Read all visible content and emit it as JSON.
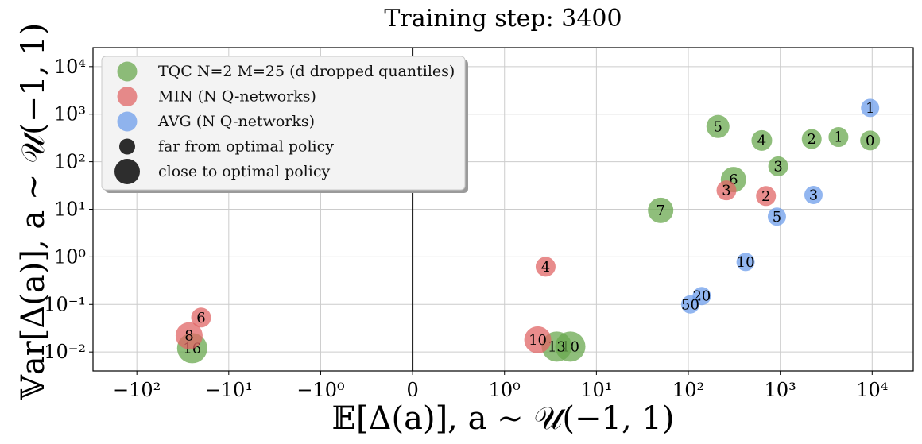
{
  "chart_data": {
    "type": "scatter",
    "title": "Training step: 3400",
    "xlabel": "𝔼[Δ(a)],    a ∼ 𝒰(−1, 1)",
    "ylabel": "𝕍ar[Δ(a)],    a ∼ 𝒰(−1, 1)",
    "x_scale": "symlog",
    "y_scale": "log",
    "x_ticks": [
      {
        "value": -100,
        "label": "−10²"
      },
      {
        "value": -10,
        "label": "−10¹"
      },
      {
        "value": -1,
        "label": "−10⁰"
      },
      {
        "value": 0,
        "label": "0"
      },
      {
        "value": 1,
        "label": "10⁰"
      },
      {
        "value": 10,
        "label": "10¹"
      },
      {
        "value": 100,
        "label": "10²"
      },
      {
        "value": 1000,
        "label": "10³"
      },
      {
        "value": 10000,
        "label": "10⁴"
      }
    ],
    "y_ticks": [
      {
        "value": 0.01,
        "label": "10⁻²"
      },
      {
        "value": 0.1,
        "label": "10⁻¹"
      },
      {
        "value": 1,
        "label": "10⁰"
      },
      {
        "value": 10,
        "label": "10¹"
      },
      {
        "value": 100,
        "label": "10²"
      },
      {
        "value": 1000,
        "label": "10³"
      },
      {
        "value": 10000,
        "label": "10⁴"
      }
    ],
    "grid": true,
    "legend_position": "top-left",
    "legend": [
      {
        "label": "TQC N=2 M=25 (d dropped quantiles)",
        "color": "#6aa84f",
        "marker": "small"
      },
      {
        "label": "MIN (N Q-networks)",
        "color": "#e06666",
        "marker": "small"
      },
      {
        "label": "AVG (N Q-networks)",
        "color": "#6d9eeb",
        "marker": "small"
      },
      {
        "label": "far from optimal policy",
        "color": "#222222",
        "marker": "small"
      },
      {
        "label": "close to optimal policy",
        "color": "#222222",
        "marker": "large"
      }
    ],
    "series": [
      {
        "name": "TQC N=2 M=25 (d dropped quantiles)",
        "color": "#6aa84f",
        "points": [
          {
            "x": 9500,
            "y": 280,
            "label": "0",
            "closeness": 0.25
          },
          {
            "x": 4300,
            "y": 330,
            "label": "1",
            "closeness": 0.25
          },
          {
            "x": 2200,
            "y": 300,
            "label": "2",
            "closeness": 0.25
          },
          {
            "x": 950,
            "y": 80,
            "label": "3",
            "closeness": 0.25
          },
          {
            "x": 630,
            "y": 280,
            "label": "4",
            "closeness": 0.3
          },
          {
            "x": 210,
            "y": 550,
            "label": "5",
            "closeness": 0.45
          },
          {
            "x": 310,
            "y": 42,
            "label": "6",
            "closeness": 0.6
          },
          {
            "x": 50,
            "y": 9.5,
            "label": "7",
            "closeness": 0.6
          },
          {
            "x": 5.2,
            "y": 0.013,
            "label": "10",
            "closeness": 0.9
          },
          {
            "x": 3.7,
            "y": 0.013,
            "label": "13",
            "closeness": 0.9
          },
          {
            "x": -25,
            "y": 0.012,
            "label": "16",
            "closeness": 0.9
          }
        ]
      },
      {
        "name": "MIN (N Q-networks)",
        "color": "#e06666",
        "points": [
          {
            "x": 700,
            "y": 19,
            "label": "2",
            "closeness": 0.25
          },
          {
            "x": 260,
            "y": 25,
            "label": "3",
            "closeness": 0.25
          },
          {
            "x": 2.8,
            "y": 0.62,
            "label": "4",
            "closeness": 0.25
          },
          {
            "x": -20,
            "y": 0.053,
            "label": "6",
            "closeness": 0.25
          },
          {
            "x": -27,
            "y": 0.022,
            "label": "8",
            "closeness": 0.7
          },
          {
            "x": 2.3,
            "y": 0.018,
            "label": "10",
            "closeness": 0.7
          }
        ]
      },
      {
        "name": "AVG (N Q-networks)",
        "color": "#6d9eeb",
        "points": [
          {
            "x": 9500,
            "y": 1350,
            "label": "1",
            "closeness": 0.15
          },
          {
            "x": 2300,
            "y": 20,
            "label": "3",
            "closeness": 0.15
          },
          {
            "x": 920,
            "y": 7,
            "label": "5",
            "closeness": 0.15
          },
          {
            "x": 420,
            "y": 0.78,
            "label": "10",
            "closeness": 0.15
          },
          {
            "x": 140,
            "y": 0.15,
            "label": "20",
            "closeness": 0.15
          },
          {
            "x": 105,
            "y": 0.1,
            "label": "50",
            "closeness": 0.15
          }
        ]
      }
    ]
  }
}
